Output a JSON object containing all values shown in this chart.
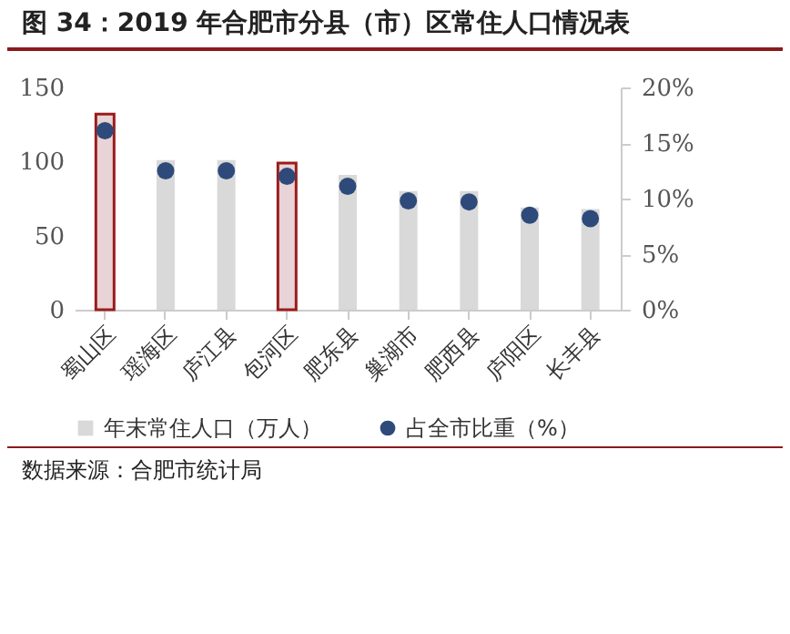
{
  "chart_data": {
    "type": "bar",
    "title": "图 34：2019 年合肥市分县（市）区常住人口情况表",
    "categories": [
      "蜀山区",
      "瑶海区",
      "庐江县",
      "包河区",
      "肥东县",
      "巢湖市",
      "肥西县",
      "庐阳区",
      "长丰县"
    ],
    "series": [
      {
        "name": "年末常住人口（万人）",
        "color": "#d9d9d9",
        "colors": [
          "#e8d3d6",
          "#d9d9d9",
          "#d9d9d9",
          "#e8d3d6",
          "#d9d9d9",
          "#d9d9d9",
          "#d9d9d9",
          "#d9d9d9",
          "#d9d9d9"
        ],
        "values": [
          132,
          101,
          101,
          99,
          91,
          80,
          80,
          69,
          68
        ]
      },
      {
        "name": "占全市比重（%）",
        "type": "scatter",
        "axis": "y2",
        "color": "#2e4a7a",
        "values": [
          16.1,
          12.5,
          12.5,
          12.0,
          11.1,
          9.8,
          9.7,
          8.5,
          8.2
        ]
      }
    ],
    "ylim": [
      0,
      150
    ],
    "yticks": [
      0,
      50,
      100,
      150
    ],
    "y2lim": [
      0,
      20
    ],
    "y2ticks": [
      {
        "value": 0,
        "label": "0%"
      },
      {
        "value": 5,
        "label": "5%"
      },
      {
        "value": 10,
        "label": "10%"
      },
      {
        "value": 15,
        "label": "15%"
      },
      {
        "value": 20,
        "label": "20%"
      }
    ],
    "legend": "bottom",
    "marker": "circle",
    "grid": false,
    "annotations": [
      "数据来源：合肥市统计局"
    ]
  }
}
